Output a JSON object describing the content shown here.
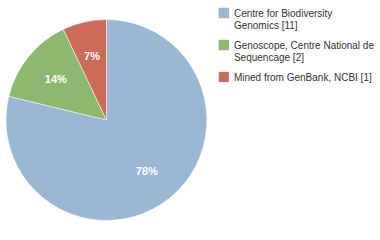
{
  "chart_data": {
    "type": "pie",
    "categories": [
      "Centre for Biodiversity\nGenomics [11]",
      "Genoscope, Centre National de\nSequencage [2]",
      "Mined from GenBank, NCBI [1]"
    ],
    "values": [
      78,
      14,
      7
    ],
    "value_labels": [
      "78%",
      "14%",
      "7%"
    ],
    "colors": [
      "#9ab7d3",
      "#8db870",
      "#cc6b5a"
    ],
    "data_labels": true,
    "legend": "upper right"
  }
}
